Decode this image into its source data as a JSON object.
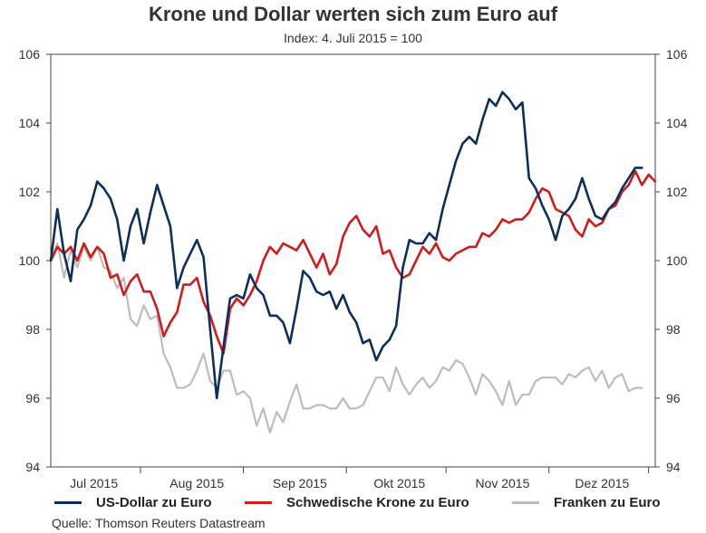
{
  "chart_data": {
    "type": "line",
    "title": "Krone und Dollar werten sich zum Euro auf",
    "subtitle": "Index: 4. Juli 2015 = 100",
    "source": "Quelle: Thomson Reuters Datastream",
    "ylim": [
      94,
      106
    ],
    "yticks": [
      94,
      96,
      98,
      100,
      102,
      104,
      106
    ],
    "ytick_labels": [
      "94",
      "96",
      "98",
      "100",
      "102",
      "104",
      "106"
    ],
    "xlim": [
      0,
      182
    ],
    "x_tick_labels": [
      "Jul 2015",
      "Aug 2015",
      "Sep 2015",
      "Okt 2015",
      "Nov 2015",
      "Dez 2015"
    ],
    "x_tick_label_pos": [
      13,
      44,
      75,
      105,
      136,
      166
    ],
    "x_month_boundaries": [
      27,
      58,
      89,
      119,
      150,
      180
    ],
    "grid": false,
    "legend_position": "bottom",
    "colors": {
      "usd": "#0d2f5e",
      "sek": "#d01c1c",
      "chf": "#bdbdbd",
      "axis": "#444444"
    },
    "series": [
      {
        "key": "chf",
        "name": "Franken zu Euro",
        "color": "#bdbdbd",
        "points": [
          [
            0,
            100
          ],
          [
            2,
            100.5
          ],
          [
            4,
            99.5
          ],
          [
            6,
            100.3
          ],
          [
            8,
            99.8
          ],
          [
            10,
            100.4
          ],
          [
            12,
            100.0
          ],
          [
            14,
            100.4
          ],
          [
            16,
            99.8
          ],
          [
            18,
            99.7
          ],
          [
            20,
            99.2
          ],
          [
            22,
            99.5
          ],
          [
            24,
            98.3
          ],
          [
            26,
            98.1
          ],
          [
            28,
            98.7
          ],
          [
            30,
            98.3
          ],
          [
            32,
            98.4
          ],
          [
            34,
            97.3
          ],
          [
            36,
            96.9
          ],
          [
            38,
            96.3
          ],
          [
            40,
            96.3
          ],
          [
            42,
            96.4
          ],
          [
            44,
            96.8
          ],
          [
            46,
            97.3
          ],
          [
            48,
            96.5
          ],
          [
            50,
            96.3
          ],
          [
            52,
            96.8
          ],
          [
            54,
            96.8
          ],
          [
            56,
            96.1
          ],
          [
            58,
            96.2
          ],
          [
            60,
            96.0
          ],
          [
            62,
            95.2
          ],
          [
            64,
            95.7
          ],
          [
            66,
            95.0
          ],
          [
            68,
            95.6
          ],
          [
            70,
            95.3
          ],
          [
            72,
            95.9
          ],
          [
            74,
            96.4
          ],
          [
            76,
            95.7
          ],
          [
            78,
            95.7
          ],
          [
            80,
            95.8
          ],
          [
            82,
            95.8
          ],
          [
            84,
            95.7
          ],
          [
            86,
            95.7
          ],
          [
            88,
            96.0
          ],
          [
            90,
            95.7
          ],
          [
            92,
            95.7
          ],
          [
            94,
            95.8
          ],
          [
            96,
            96.2
          ],
          [
            98,
            96.6
          ],
          [
            100,
            96.6
          ],
          [
            102,
            96.2
          ],
          [
            104,
            96.9
          ],
          [
            106,
            96.4
          ],
          [
            108,
            96.1
          ],
          [
            110,
            96.4
          ],
          [
            112,
            96.6
          ],
          [
            114,
            96.3
          ],
          [
            116,
            96.5
          ],
          [
            118,
            96.9
          ],
          [
            120,
            96.8
          ],
          [
            122,
            97.1
          ],
          [
            124,
            97.0
          ],
          [
            126,
            96.6
          ],
          [
            128,
            96.1
          ],
          [
            130,
            96.7
          ],
          [
            132,
            96.5
          ],
          [
            134,
            96.2
          ],
          [
            136,
            95.8
          ],
          [
            138,
            96.5
          ],
          [
            140,
            95.8
          ],
          [
            142,
            96.1
          ],
          [
            144,
            96.1
          ],
          [
            146,
            96.5
          ],
          [
            148,
            96.6
          ],
          [
            150,
            96.6
          ],
          [
            152,
            96.6
          ],
          [
            154,
            96.4
          ],
          [
            156,
            96.7
          ],
          [
            158,
            96.6
          ],
          [
            160,
            96.8
          ],
          [
            162,
            96.9
          ],
          [
            164,
            96.5
          ],
          [
            166,
            96.8
          ],
          [
            168,
            96.3
          ],
          [
            170,
            96.6
          ],
          [
            172,
            96.7
          ],
          [
            174,
            96.2
          ],
          [
            176,
            96.3
          ],
          [
            178,
            96.3
          ]
        ]
      },
      {
        "key": "sek",
        "name": "Schwedische Krone zu Euro",
        "color": "#d01c1c",
        "points": [
          [
            0,
            100
          ],
          [
            2,
            100.4
          ],
          [
            4,
            100.2
          ],
          [
            6,
            100.4
          ],
          [
            8,
            100.0
          ],
          [
            10,
            100.5
          ],
          [
            12,
            100.1
          ],
          [
            14,
            100.4
          ],
          [
            16,
            100.2
          ],
          [
            18,
            99.5
          ],
          [
            20,
            99.6
          ],
          [
            22,
            99.0
          ],
          [
            24,
            99.4
          ],
          [
            26,
            99.6
          ],
          [
            28,
            99.1
          ],
          [
            30,
            99.1
          ],
          [
            32,
            98.6
          ],
          [
            34,
            97.8
          ],
          [
            36,
            98.2
          ],
          [
            38,
            98.5
          ],
          [
            40,
            99.3
          ],
          [
            42,
            99.3
          ],
          [
            44,
            99.5
          ],
          [
            46,
            98.8
          ],
          [
            48,
            98.4
          ],
          [
            50,
            97.8
          ],
          [
            52,
            97.3
          ],
          [
            54,
            98.6
          ],
          [
            56,
            98.9
          ],
          [
            58,
            98.7
          ],
          [
            60,
            99.0
          ],
          [
            62,
            99.4
          ],
          [
            64,
            100.0
          ],
          [
            66,
            100.4
          ],
          [
            68,
            100.2
          ],
          [
            70,
            100.5
          ],
          [
            72,
            100.4
          ],
          [
            74,
            100.3
          ],
          [
            76,
            100.6
          ],
          [
            78,
            100.2
          ],
          [
            80,
            99.8
          ],
          [
            82,
            100.2
          ],
          [
            84,
            99.6
          ],
          [
            86,
            99.9
          ],
          [
            88,
            100.7
          ],
          [
            90,
            101.1
          ],
          [
            92,
            101.3
          ],
          [
            94,
            100.9
          ],
          [
            96,
            100.7
          ],
          [
            98,
            101.0
          ],
          [
            100,
            100.2
          ],
          [
            102,
            100.3
          ],
          [
            104,
            99.8
          ],
          [
            106,
            99.5
          ],
          [
            108,
            99.6
          ],
          [
            110,
            100.0
          ],
          [
            112,
            100.4
          ],
          [
            114,
            100.2
          ],
          [
            116,
            100.5
          ],
          [
            118,
            100.1
          ],
          [
            120,
            100.0
          ],
          [
            122,
            100.2
          ],
          [
            124,
            100.3
          ],
          [
            126,
            100.4
          ],
          [
            128,
            100.4
          ],
          [
            130,
            100.8
          ],
          [
            132,
            100.7
          ],
          [
            134,
            100.9
          ],
          [
            136,
            101.2
          ],
          [
            138,
            101.1
          ],
          [
            140,
            101.2
          ],
          [
            142,
            101.2
          ],
          [
            144,
            101.4
          ],
          [
            146,
            101.8
          ],
          [
            148,
            102.1
          ],
          [
            150,
            102.0
          ],
          [
            152,
            101.5
          ],
          [
            154,
            101.4
          ],
          [
            156,
            101.3
          ],
          [
            158,
            100.9
          ],
          [
            160,
            100.7
          ],
          [
            162,
            101.2
          ],
          [
            164,
            101.0
          ],
          [
            166,
            101.1
          ],
          [
            168,
            101.5
          ],
          [
            170,
            101.6
          ],
          [
            172,
            102.0
          ],
          [
            174,
            102.2
          ],
          [
            176,
            102.6
          ],
          [
            178,
            102.2
          ],
          [
            180,
            102.5
          ],
          [
            182,
            102.3
          ]
        ]
      },
      {
        "key": "usd",
        "name": "US-Dollar zu Euro",
        "color": "#0d2f5e",
        "points": [
          [
            0,
            100
          ],
          [
            2,
            101.5
          ],
          [
            4,
            100.2
          ],
          [
            6,
            99.4
          ],
          [
            8,
            100.9
          ],
          [
            10,
            101.2
          ],
          [
            12,
            101.6
          ],
          [
            14,
            102.3
          ],
          [
            16,
            102.1
          ],
          [
            18,
            101.8
          ],
          [
            20,
            101.2
          ],
          [
            22,
            100.0
          ],
          [
            24,
            101.0
          ],
          [
            26,
            101.5
          ],
          [
            28,
            100.5
          ],
          [
            30,
            101.4
          ],
          [
            32,
            102.2
          ],
          [
            34,
            101.6
          ],
          [
            36,
            101.0
          ],
          [
            38,
            99.2
          ],
          [
            40,
            99.8
          ],
          [
            42,
            100.2
          ],
          [
            44,
            100.6
          ],
          [
            46,
            100.1
          ],
          [
            48,
            98.0
          ],
          [
            50,
            96.0
          ],
          [
            52,
            97.5
          ],
          [
            54,
            98.9
          ],
          [
            56,
            99.0
          ],
          [
            58,
            98.9
          ],
          [
            60,
            99.6
          ],
          [
            62,
            99.2
          ],
          [
            64,
            99.0
          ],
          [
            66,
            98.4
          ],
          [
            68,
            98.4
          ],
          [
            70,
            98.2
          ],
          [
            72,
            97.6
          ],
          [
            74,
            98.6
          ],
          [
            76,
            99.7
          ],
          [
            78,
            99.5
          ],
          [
            80,
            99.1
          ],
          [
            82,
            99.0
          ],
          [
            84,
            99.1
          ],
          [
            86,
            98.6
          ],
          [
            88,
            99.0
          ],
          [
            90,
            98.5
          ],
          [
            92,
            98.2
          ],
          [
            94,
            97.6
          ],
          [
            96,
            97.7
          ],
          [
            98,
            97.1
          ],
          [
            100,
            97.5
          ],
          [
            102,
            97.7
          ],
          [
            104,
            98.1
          ],
          [
            106,
            99.8
          ],
          [
            108,
            100.6
          ],
          [
            110,
            100.5
          ],
          [
            112,
            100.5
          ],
          [
            114,
            100.8
          ],
          [
            116,
            100.6
          ],
          [
            118,
            101.5
          ],
          [
            120,
            102.2
          ],
          [
            122,
            102.9
          ],
          [
            124,
            103.4
          ],
          [
            126,
            103.6
          ],
          [
            128,
            103.4
          ],
          [
            130,
            104.1
          ],
          [
            132,
            104.7
          ],
          [
            134,
            104.5
          ],
          [
            136,
            104.9
          ],
          [
            138,
            104.7
          ],
          [
            140,
            104.4
          ],
          [
            142,
            104.6
          ],
          [
            144,
            102.4
          ],
          [
            146,
            102.1
          ],
          [
            148,
            101.6
          ],
          [
            150,
            101.2
          ],
          [
            152,
            100.6
          ],
          [
            154,
            101.3
          ],
          [
            156,
            101.5
          ],
          [
            158,
            101.8
          ],
          [
            160,
            102.4
          ],
          [
            162,
            101.8
          ],
          [
            164,
            101.3
          ],
          [
            166,
            101.2
          ],
          [
            168,
            101.5
          ],
          [
            170,
            101.7
          ],
          [
            172,
            102.1
          ],
          [
            174,
            102.4
          ],
          [
            176,
            102.7
          ],
          [
            178,
            102.7
          ]
        ]
      }
    ]
  },
  "legend": {
    "items": [
      {
        "label": "US-Dollar zu Euro",
        "color": "#0d2f5e"
      },
      {
        "label": "Schwedische Krone zu Euro",
        "color": "#d01c1c"
      },
      {
        "label": "Franken zu Euro",
        "color": "#bdbdbd"
      }
    ]
  }
}
